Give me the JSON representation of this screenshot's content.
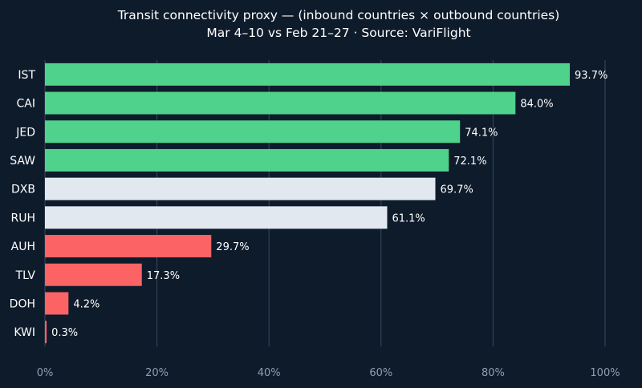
{
  "chart_data": {
    "type": "bar",
    "orientation": "horizontal",
    "title": "Transit connectivity proxy — (inbound countries × outbound countries)",
    "subtitle": "Mar 4–10 vs Feb 21–27 · Source: VariFlight",
    "xlabel": "",
    "ylabel": "",
    "xlim": [
      0,
      100
    ],
    "grid": true,
    "categories": [
      "IST",
      "CAI",
      "JED",
      "SAW",
      "DXB",
      "RUH",
      "AUH",
      "TLV",
      "DOH",
      "KWI"
    ],
    "values": [
      93.7,
      84.0,
      74.1,
      72.1,
      69.7,
      61.1,
      29.7,
      17.3,
      4.2,
      0.3
    ],
    "value_labels": [
      "93.7%",
      "84.0%",
      "74.1%",
      "72.1%",
      "69.7%",
      "61.1%",
      "29.7%",
      "17.3%",
      "4.2%",
      "0.3%"
    ],
    "bar_groups": [
      "high",
      "high",
      "high",
      "high",
      "mid",
      "mid",
      "low",
      "low",
      "low",
      "low"
    ],
    "colors": {
      "high": "#4fd28b",
      "mid": "#e2e8f0",
      "low": "#fb6365"
    },
    "xticks": [
      0,
      20,
      40,
      60,
      80,
      100
    ],
    "xtick_labels": [
      "0%",
      "20%",
      "40%",
      "60%",
      "80%",
      "100%"
    ]
  }
}
